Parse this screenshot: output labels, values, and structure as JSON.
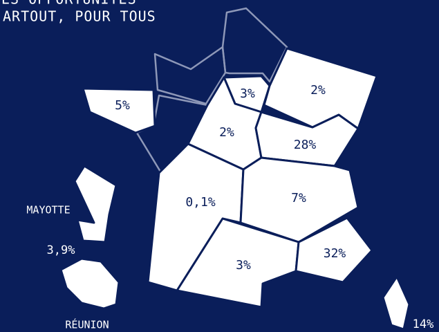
{
  "header": {
    "lines": [
      "ES OPPORTUNITÉS",
      "ARTOUT, POUR TOUS"
    ]
  },
  "regions": [
    {
      "label": "5%"
    },
    {
      "label": "3%"
    },
    {
      "label": "2%"
    },
    {
      "label": "2%"
    },
    {
      "label": "28%"
    },
    {
      "label": "0,1%"
    },
    {
      "label": "7%"
    },
    {
      "label": "3%"
    },
    {
      "label": "32%"
    },
    {
      "label": "14%"
    }
  ],
  "overseas": {
    "mayotte": {
      "name": "MAYOTTE",
      "label": "3,9%"
    },
    "reunion": {
      "name": "RÉUNION"
    }
  }
}
